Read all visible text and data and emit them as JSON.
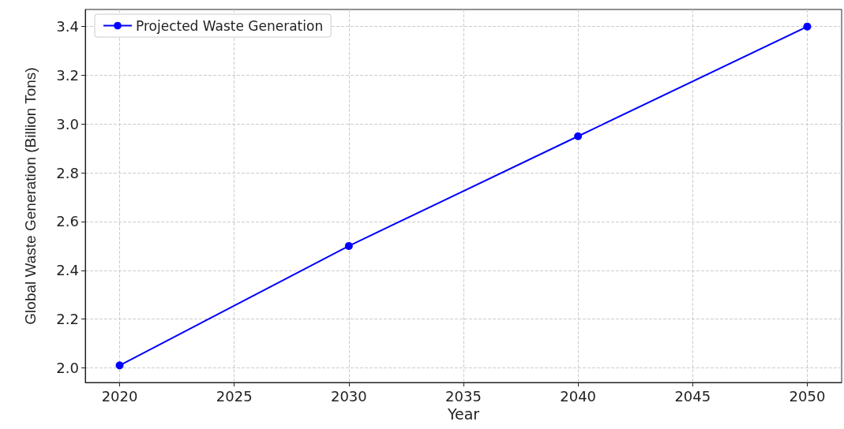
{
  "chart_data": {
    "type": "line",
    "xlabel": "Year",
    "ylabel": "Global Waste Generation (Billion Tons)",
    "x": [
      2020,
      2030,
      2040,
      2050
    ],
    "series": [
      {
        "name": "Projected Waste Generation",
        "color": "#0000ff",
        "values": [
          2.01,
          2.5,
          2.95,
          3.4
        ]
      }
    ],
    "xlim": [
      2018.5,
      2051.5
    ],
    "xticks": [
      2020,
      2025,
      2030,
      2035,
      2040,
      2045,
      2050
    ],
    "ylim": [
      1.94,
      3.47
    ],
    "yticks": [
      {
        "value": 2,
        "label": "2.0"
      },
      {
        "value": 2.2,
        "label": "2.2"
      },
      {
        "value": 2.4,
        "label": "2.4"
      },
      {
        "value": 2.6,
        "label": "2.6"
      },
      {
        "value": 2.8,
        "label": "2.8"
      },
      {
        "value": 3,
        "label": "3.0"
      },
      {
        "value": 3.2,
        "label": "3.2"
      },
      {
        "value": 3.4,
        "label": "3.4"
      }
    ],
    "grid": true,
    "legend": "top left",
    "marker": "circle",
    "line_style": "solid"
  }
}
